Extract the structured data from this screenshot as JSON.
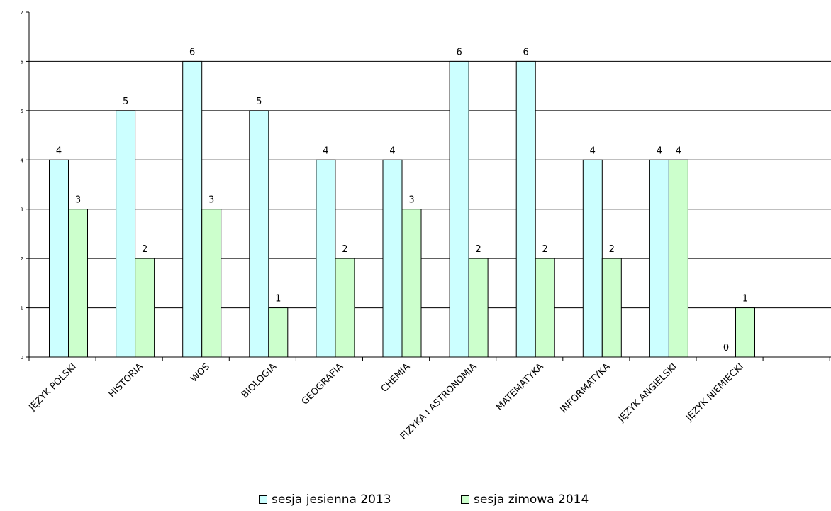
{
  "chart_data": {
    "type": "bar",
    "categories": [
      "JĘZYK POLSKI",
      "HISTORIA",
      "WOS",
      "BIOLOGIA",
      "GEOGRAFIA",
      "CHEMIA",
      "FIZYKA I ASTRONOMIA",
      "MATEMATYKA",
      "INFORMATYKA",
      "JĘZYK ANGIELSKI",
      "JĘZYK NIEMIECKI"
    ],
    "series": [
      {
        "name": "sesja jesienna 2013",
        "values": [
          4,
          5,
          6,
          5,
          4,
          4,
          6,
          6,
          4,
          4,
          0
        ],
        "color": "#ccffff"
      },
      {
        "name": "sesja zimowa 2014",
        "values": [
          3,
          2,
          3,
          1,
          2,
          3,
          2,
          2,
          2,
          4,
          1
        ],
        "color": "#ccffcc"
      }
    ],
    "yticks": [
      "0",
      "1",
      "2",
      "3",
      "4",
      "5",
      "6",
      "7"
    ],
    "ylim": [
      0,
      7
    ],
    "grid": true,
    "data_labels": true,
    "legend_position": "bottom",
    "title": "",
    "xlabel": "",
    "ylabel": ""
  }
}
